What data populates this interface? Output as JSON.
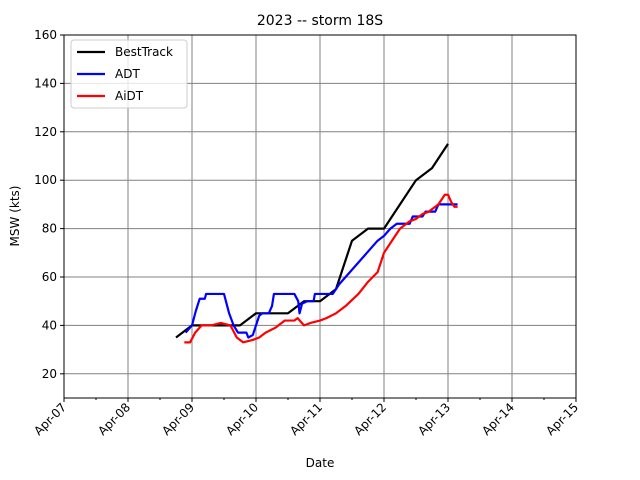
{
  "chart_data": {
    "type": "line",
    "title": "2023 -- storm 18S",
    "xlabel": "Date",
    "ylabel": "MSW (kts)",
    "xlim": [
      0,
      8
    ],
    "ylim": [
      10,
      160
    ],
    "x_unit": "days since Apr-07",
    "xticks": [
      "Apr-07",
      "Apr-08",
      "Apr-09",
      "Apr-10",
      "Apr-11",
      "Apr-12",
      "Apr-13",
      "Apr-14",
      "Apr-15"
    ],
    "yticks": [
      20,
      40,
      60,
      80,
      100,
      120,
      140,
      160
    ],
    "grid": true,
    "legend_position": "top-left",
    "series": [
      {
        "name": "BestTrack",
        "color": "#000000",
        "points": [
          [
            1.75,
            35
          ],
          [
            2.0,
            40
          ],
          [
            2.25,
            40
          ],
          [
            2.5,
            40
          ],
          [
            2.75,
            40
          ],
          [
            3.0,
            45
          ],
          [
            3.25,
            45
          ],
          [
            3.5,
            45
          ],
          [
            3.75,
            50
          ],
          [
            4.0,
            50
          ],
          [
            4.25,
            55
          ],
          [
            4.5,
            75
          ],
          [
            4.75,
            80
          ],
          [
            5.0,
            80
          ],
          [
            5.25,
            90
          ],
          [
            5.5,
            100
          ],
          [
            5.75,
            105
          ],
          [
            6.0,
            115
          ]
        ]
      },
      {
        "name": "ADT",
        "color": "#0000ff",
        "points": [
          [
            1.9,
            37
          ],
          [
            2.0,
            40
          ],
          [
            2.06,
            46
          ],
          [
            2.12,
            51
          ],
          [
            2.2,
            51
          ],
          [
            2.22,
            53
          ],
          [
            2.5,
            53
          ],
          [
            2.58,
            45
          ],
          [
            2.65,
            40
          ],
          [
            2.72,
            37
          ],
          [
            2.85,
            37
          ],
          [
            2.88,
            35
          ],
          [
            2.95,
            36
          ],
          [
            3.0,
            40
          ],
          [
            3.05,
            44
          ],
          [
            3.1,
            45
          ],
          [
            3.2,
            45
          ],
          [
            3.25,
            48
          ],
          [
            3.28,
            53
          ],
          [
            3.6,
            53
          ],
          [
            3.66,
            50
          ],
          [
            3.68,
            45
          ],
          [
            3.72,
            49
          ],
          [
            3.8,
            50
          ],
          [
            3.9,
            50
          ],
          [
            3.92,
            53
          ],
          [
            4.2,
            53
          ],
          [
            4.3,
            57
          ],
          [
            4.4,
            60
          ],
          [
            4.5,
            63
          ],
          [
            4.6,
            66
          ],
          [
            4.7,
            69
          ],
          [
            4.8,
            72
          ],
          [
            4.9,
            75
          ],
          [
            5.0,
            77
          ],
          [
            5.1,
            80
          ],
          [
            5.2,
            82
          ],
          [
            5.4,
            82
          ],
          [
            5.45,
            85
          ],
          [
            5.6,
            85
          ],
          [
            5.65,
            87
          ],
          [
            5.8,
            87
          ],
          [
            5.85,
            90
          ],
          [
            6.15,
            90
          ]
        ]
      },
      {
        "name": "AiDT",
        "color": "#ff0000",
        "points": [
          [
            1.88,
            33
          ],
          [
            1.97,
            33
          ],
          [
            2.05,
            37
          ],
          [
            2.15,
            40
          ],
          [
            2.3,
            40
          ],
          [
            2.45,
            41
          ],
          [
            2.6,
            40
          ],
          [
            2.7,
            35
          ],
          [
            2.8,
            33
          ],
          [
            2.95,
            34
          ],
          [
            3.05,
            35
          ],
          [
            3.15,
            37
          ],
          [
            3.3,
            39
          ],
          [
            3.45,
            42
          ],
          [
            3.6,
            42
          ],
          [
            3.65,
            43
          ],
          [
            3.75,
            40
          ],
          [
            3.85,
            41
          ],
          [
            4.0,
            42
          ],
          [
            4.1,
            43
          ],
          [
            4.25,
            45
          ],
          [
            4.4,
            48
          ],
          [
            4.6,
            53
          ],
          [
            4.75,
            58
          ],
          [
            4.9,
            62
          ],
          [
            5.0,
            70
          ],
          [
            5.1,
            74
          ],
          [
            5.25,
            80
          ],
          [
            5.4,
            83
          ],
          [
            5.5,
            84
          ],
          [
            5.6,
            86
          ],
          [
            5.7,
            87
          ],
          [
            5.85,
            90
          ],
          [
            5.95,
            94
          ],
          [
            6.0,
            94
          ],
          [
            6.05,
            91
          ],
          [
            6.1,
            89
          ],
          [
            6.15,
            89
          ]
        ]
      }
    ]
  }
}
